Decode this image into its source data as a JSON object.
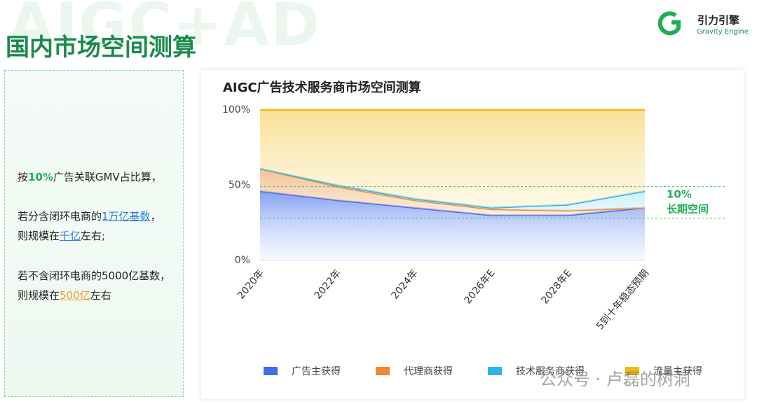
{
  "header": {
    "watermark": "AIGC+AD",
    "title": "国内市场空间测算",
    "brand": "引力引擎",
    "brand_en": "Gravity Engine"
  },
  "left_panel": {
    "paragraphs": [
      [
        [
          {
            "text": "按",
            "style": "plain"
          },
          {
            "text": "10%",
            "style": "green"
          },
          {
            "text": "广告关联GMV占比算，",
            "style": "plain"
          }
        ]
      ],
      [
        [
          {
            "text": "若分含闭环电商的",
            "style": "plain"
          },
          {
            "text": "1万亿基数",
            "style": "blue"
          },
          {
            "text": "，",
            "style": "plain"
          }
        ],
        [
          {
            "text": "则规模在",
            "style": "plain"
          },
          {
            "text": "千亿",
            "style": "blue"
          },
          {
            "text": "左右;",
            "style": "plain"
          }
        ]
      ],
      [
        [
          {
            "text": "若不含闭环电商的5000亿基数，",
            "style": "plain"
          }
        ],
        [
          {
            "text": "则规模在",
            "style": "plain"
          },
          {
            "text": "500亿",
            "style": "orange"
          },
          {
            "text": "左右",
            "style": "plain"
          }
        ]
      ]
    ]
  },
  "footer_watermark": "公众号 · 卢磊的树洞",
  "chart_data": {
    "type": "stacked_area",
    "title": "AIGC广告技术服务商市场空间测算",
    "categories": [
      "2020年",
      "2022年",
      "2024年",
      "2026年E",
      "2028年E",
      "5到十年稳态预期"
    ],
    "series": [
      {
        "name": "广告主获得",
        "color": "#3f6fe6",
        "values": [
          46,
          40,
          35,
          30,
          30,
          35
        ]
      },
      {
        "name": "代理商获得",
        "color": "#ee8a35",
        "values": [
          15,
          9,
          5,
          4,
          3,
          0
        ]
      },
      {
        "name": "技术服务商获得",
        "color": "#2bb5e6",
        "values": [
          0,
          1,
          1,
          1,
          4,
          11
        ]
      },
      {
        "name": "流量主获得",
        "color": "#f2b81a",
        "values": [
          39,
          50,
          59,
          65,
          63,
          54
        ]
      }
    ],
    "ylim": [
      0,
      100
    ],
    "yticks": [
      {
        "value": 0,
        "label": "0%"
      },
      {
        "value": 50,
        "label": "50%"
      },
      {
        "value": 100,
        "label": "100%"
      }
    ],
    "reference_lines": [
      49,
      28
    ],
    "annotation": {
      "value": "10%",
      "label": "长期空间"
    }
  }
}
